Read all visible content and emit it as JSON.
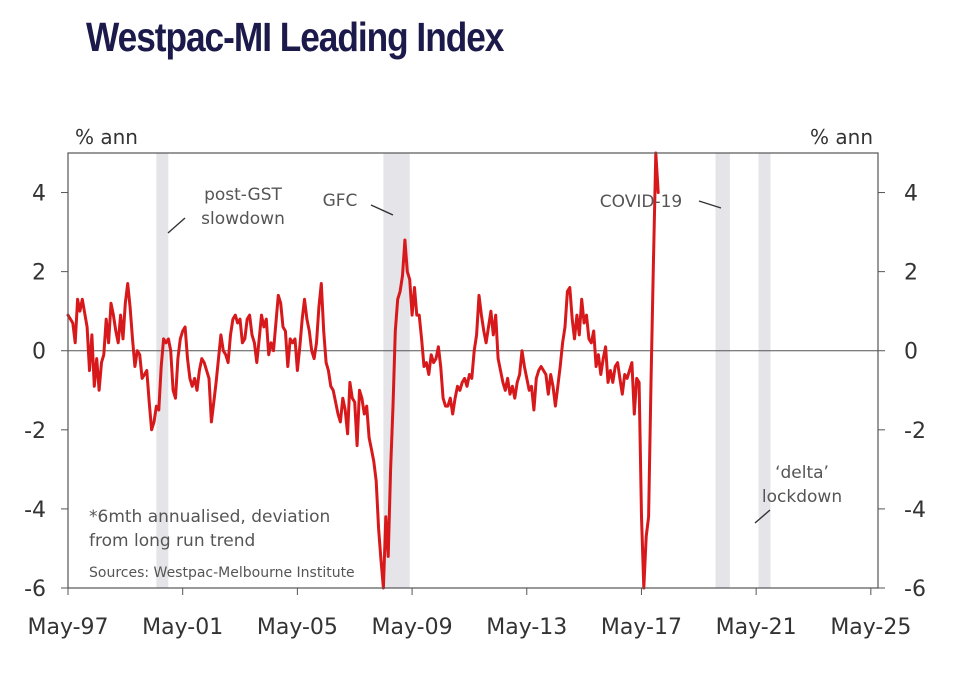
{
  "title": "Westpac-MI Leading Index",
  "chart_data": {
    "type": "line",
    "y_unit_left": "% ann",
    "y_unit_right": "% ann",
    "ylim": [
      -6,
      5
    ],
    "yticks": [
      4,
      2,
      0,
      -2,
      -4,
      -6
    ],
    "ytick_labels": [
      "4",
      "2",
      "0",
      "-2",
      "-4",
      "-6"
    ],
    "xlim": [
      "1997-05",
      "2025-08"
    ],
    "xticks": [
      "1997-05",
      "2001-05",
      "2005-05",
      "2009-05",
      "2013-05",
      "2017-05",
      "2021-05",
      "2025-05"
    ],
    "xtick_labels": [
      "May-97",
      "May-01",
      "May-05",
      "May-09",
      "May-13",
      "May-17",
      "May-21",
      "May-25"
    ],
    "grid": false,
    "zero_line": true,
    "line_color": "#d7191c",
    "shade_color": "#e4e4e9",
    "shaded_periods": [
      [
        "2000-06",
        "2000-11"
      ],
      [
        "2008-05",
        "2009-04"
      ],
      [
        "2019-12",
        "2020-06"
      ],
      [
        "2021-06",
        "2021-11"
      ]
    ],
    "annotations": [
      {
        "lines": [
          "post-GST",
          "slowdown"
        ]
      },
      {
        "lines": [
          "GFC"
        ]
      },
      {
        "lines": [
          "COVID-19"
        ]
      },
      {
        "lines": [
          "‘delta’",
          "lockdown"
        ]
      }
    ],
    "footnote": [
      "*6mth annualised, deviation",
      "from long run trend"
    ],
    "source": "Sources: Westpac-Melbourne Institute",
    "series": [
      {
        "values": [
          [
            "1997-05",
            0.9
          ],
          [
            "1997-07",
            0.7
          ],
          [
            "1997-08",
            0.2
          ],
          [
            "1997-09",
            1.3
          ],
          [
            "1997-10",
            1.0
          ],
          [
            "1997-11",
            1.3
          ],
          [
            "1998-01",
            0.6
          ],
          [
            "1998-02",
            -0.5
          ],
          [
            "1998-03",
            0.4
          ],
          [
            "1998-04",
            -0.9
          ],
          [
            "1998-05",
            -0.2
          ],
          [
            "1998-06",
            -1.0
          ],
          [
            "1998-07",
            -0.3
          ],
          [
            "1998-08",
            -0.1
          ],
          [
            "1998-09",
            0.8
          ],
          [
            "1998-10",
            0.2
          ],
          [
            "1998-11",
            1.2
          ],
          [
            "1998-12",
            0.9
          ],
          [
            "1999-01",
            0.5
          ],
          [
            "1999-02",
            0.2
          ],
          [
            "1999-03",
            0.9
          ],
          [
            "1999-04",
            0.3
          ],
          [
            "1999-05",
            1.2
          ],
          [
            "1999-06",
            1.7
          ],
          [
            "1999-07",
            1.1
          ],
          [
            "1999-08",
            0.3
          ],
          [
            "1999-09",
            -0.4
          ],
          [
            "1999-10",
            0.0
          ],
          [
            "1999-11",
            -0.1
          ],
          [
            "1999-12",
            -0.7
          ],
          [
            "2000-01",
            -0.6
          ],
          [
            "2000-02",
            -0.5
          ],
          [
            "2000-03",
            -1.3
          ],
          [
            "2000-04",
            -2.0
          ],
          [
            "2000-05",
            -1.8
          ],
          [
            "2000-06",
            -1.4
          ],
          [
            "2000-07",
            -1.5
          ],
          [
            "2000-08",
            -0.4
          ],
          [
            "2000-09",
            0.3
          ],
          [
            "2000-10",
            0.2
          ],
          [
            "2000-11",
            0.3
          ],
          [
            "2000-12",
            0.0
          ],
          [
            "2001-01",
            -1.0
          ],
          [
            "2001-02",
            -1.2
          ],
          [
            "2001-03",
            -0.2
          ],
          [
            "2001-04",
            0.3
          ],
          [
            "2001-05",
            0.5
          ],
          [
            "2001-06",
            0.6
          ],
          [
            "2001-07",
            -0.2
          ],
          [
            "2001-08",
            -0.7
          ],
          [
            "2001-09",
            -0.9
          ],
          [
            "2001-10",
            -0.7
          ],
          [
            "2001-11",
            -1.0
          ],
          [
            "2001-12",
            -0.5
          ],
          [
            "2002-01",
            -0.2
          ],
          [
            "2002-02",
            -0.3
          ],
          [
            "2002-03",
            -0.5
          ],
          [
            "2002-04",
            -0.7
          ],
          [
            "2002-05",
            -1.8
          ],
          [
            "2002-06",
            -1.3
          ],
          [
            "2002-07",
            -0.8
          ],
          [
            "2002-08",
            -0.2
          ],
          [
            "2002-09",
            0.4
          ],
          [
            "2002-10",
            0.0
          ],
          [
            "2002-11",
            -0.1
          ],
          [
            "2002-12",
            -0.3
          ],
          [
            "2003-01",
            0.4
          ],
          [
            "2003-02",
            0.8
          ],
          [
            "2003-03",
            0.9
          ],
          [
            "2003-04",
            0.7
          ],
          [
            "2003-05",
            0.8
          ],
          [
            "2003-06",
            0.2
          ],
          [
            "2003-07",
            0.3
          ],
          [
            "2003-08",
            0.8
          ],
          [
            "2003-09",
            0.9
          ],
          [
            "2003-10",
            0.4
          ],
          [
            "2003-11",
            0.2
          ],
          [
            "2003-12",
            -0.3
          ],
          [
            "2004-01",
            0.3
          ],
          [
            "2004-02",
            0.9
          ],
          [
            "2004-03",
            0.6
          ],
          [
            "2004-04",
            0.8
          ],
          [
            "2004-05",
            -0.1
          ],
          [
            "2004-06",
            0.2
          ],
          [
            "2004-07",
            0.0
          ],
          [
            "2004-08",
            0.7
          ],
          [
            "2004-09",
            1.4
          ],
          [
            "2004-10",
            1.2
          ],
          [
            "2004-11",
            0.6
          ],
          [
            "2004-12",
            0.5
          ],
          [
            "2005-01",
            -0.4
          ],
          [
            "2005-02",
            0.3
          ],
          [
            "2005-03",
            0.2
          ],
          [
            "2005-04",
            0.3
          ],
          [
            "2005-05",
            -0.5
          ],
          [
            "2005-06",
            0.1
          ],
          [
            "2005-07",
            0.8
          ],
          [
            "2005-08",
            1.3
          ],
          [
            "2005-09",
            0.8
          ],
          [
            "2005-10",
            0.5
          ],
          [
            "2005-11",
            0.0
          ],
          [
            "2005-12",
            -0.2
          ],
          [
            "2006-01",
            0.2
          ],
          [
            "2006-02",
            1.1
          ],
          [
            "2006-03",
            1.7
          ],
          [
            "2006-04",
            0.5
          ],
          [
            "2006-05",
            -0.3
          ],
          [
            "2006-06",
            -0.5
          ],
          [
            "2006-07",
            -0.9
          ],
          [
            "2006-08",
            -1.0
          ],
          [
            "2006-09",
            -1.3
          ],
          [
            "2006-10",
            -1.6
          ],
          [
            "2006-11",
            -1.8
          ],
          [
            "2006-12",
            -1.2
          ],
          [
            "2007-01",
            -1.5
          ],
          [
            "2007-02",
            -2.1
          ],
          [
            "2007-03",
            -0.8
          ],
          [
            "2007-04",
            -1.2
          ],
          [
            "2007-05",
            -1.3
          ],
          [
            "2007-06",
            -2.4
          ],
          [
            "2007-07",
            -1.0
          ],
          [
            "2007-08",
            -1.2
          ],
          [
            "2007-09",
            -1.6
          ],
          [
            "2007-10",
            -1.4
          ],
          [
            "2007-11",
            -2.2
          ],
          [
            "2007-12",
            -2.5
          ],
          [
            "2008-01",
            -2.8
          ],
          [
            "2008-02",
            -3.3
          ],
          [
            "2008-03",
            -4.5
          ],
          [
            "2008-04",
            -5.3
          ],
          [
            "2008-05",
            -6.0
          ],
          [
            "2008-06",
            -4.2
          ],
          [
            "2008-07",
            -5.2
          ],
          [
            "2008-08",
            -3.0
          ],
          [
            "2008-09",
            -1.4
          ],
          [
            "2008-10",
            0.5
          ],
          [
            "2008-11",
            1.3
          ],
          [
            "2008-12",
            1.5
          ],
          [
            "2009-01",
            1.9
          ],
          [
            "2009-02",
            2.8
          ],
          [
            "2009-03",
            2.0
          ],
          [
            "2009-04",
            1.8
          ],
          [
            "2009-05",
            0.9
          ],
          [
            "2009-06",
            1.6
          ],
          [
            "2009-07",
            0.9
          ],
          [
            "2009-08",
            0.9
          ],
          [
            "2009-09",
            0.3
          ],
          [
            "2009-10",
            -0.4
          ],
          [
            "2009-11",
            -0.3
          ],
          [
            "2009-12",
            -0.6
          ],
          [
            "2010-01",
            -0.1
          ],
          [
            "2010-02",
            -0.3
          ],
          [
            "2010-03",
            -0.2
          ],
          [
            "2010-04",
            0.1
          ],
          [
            "2010-05",
            -0.4
          ],
          [
            "2010-06",
            -1.2
          ],
          [
            "2010-07",
            -1.4
          ],
          [
            "2010-08",
            -1.4
          ],
          [
            "2010-09",
            -1.2
          ],
          [
            "2010-10",
            -1.6
          ],
          [
            "2010-11",
            -1.2
          ],
          [
            "2010-12",
            -0.9
          ],
          [
            "2011-01",
            -1.0
          ],
          [
            "2011-02",
            -0.8
          ],
          [
            "2011-03",
            -0.7
          ],
          [
            "2011-04",
            -0.9
          ],
          [
            "2011-05",
            -0.6
          ],
          [
            "2011-06",
            -0.7
          ],
          [
            "2011-07",
            0.0
          ],
          [
            "2011-08",
            0.4
          ],
          [
            "2011-09",
            1.4
          ],
          [
            "2011-10",
            0.9
          ],
          [
            "2011-11",
            0.5
          ],
          [
            "2011-12",
            0.2
          ],
          [
            "2012-01",
            0.6
          ],
          [
            "2012-02",
            1.0
          ],
          [
            "2012-03",
            0.4
          ],
          [
            "2012-04",
            0.9
          ],
          [
            "2012-05",
            -0.2
          ],
          [
            "2012-06",
            -0.5
          ],
          [
            "2012-07",
            -0.8
          ],
          [
            "2012-08",
            -1.0
          ],
          [
            "2012-09",
            -0.7
          ],
          [
            "2012-10",
            -1.1
          ],
          [
            "2012-11",
            -0.9
          ],
          [
            "2012-12",
            -1.2
          ],
          [
            "2013-01",
            -0.8
          ],
          [
            "2013-02",
            -0.6
          ],
          [
            "2013-03",
            0.0
          ],
          [
            "2013-04",
            -0.4
          ],
          [
            "2013-05",
            -0.7
          ],
          [
            "2013-06",
            -1.0
          ],
          [
            "2013-07",
            -0.9
          ],
          [
            "2013-08",
            -1.5
          ],
          [
            "2013-09",
            -0.7
          ],
          [
            "2013-10",
            -0.5
          ],
          [
            "2013-11",
            -0.4
          ],
          [
            "2013-12",
            -0.5
          ],
          [
            "2014-01",
            -0.6
          ],
          [
            "2014-02",
            -1.1
          ],
          [
            "2014-03",
            -0.6
          ],
          [
            "2014-04",
            -0.9
          ],
          [
            "2014-05",
            -1.4
          ],
          [
            "2014-06",
            -0.9
          ],
          [
            "2014-07",
            -0.4
          ],
          [
            "2014-08",
            0.2
          ],
          [
            "2014-09",
            0.6
          ],
          [
            "2014-10",
            1.5
          ],
          [
            "2014-11",
            1.6
          ],
          [
            "2014-12",
            0.8
          ],
          [
            "2015-01",
            0.3
          ],
          [
            "2015-02",
            0.9
          ],
          [
            "2015-03",
            0.4
          ],
          [
            "2015-04",
            1.3
          ],
          [
            "2015-05",
            0.7
          ],
          [
            "2015-06",
            0.9
          ],
          [
            "2015-07",
            0.3
          ],
          [
            "2015-08",
            0.2
          ],
          [
            "2015-09",
            0.5
          ],
          [
            "2015-10",
            -0.4
          ],
          [
            "2015-11",
            -0.1
          ],
          [
            "2015-12",
            -0.6
          ],
          [
            "2016-01",
            -0.2
          ],
          [
            "2016-02",
            0.1
          ],
          [
            "2016-03",
            -0.8
          ],
          [
            "2016-04",
            -0.5
          ],
          [
            "2016-05",
            -0.8
          ],
          [
            "2016-06",
            -0.4
          ],
          [
            "2016-07",
            -0.3
          ],
          [
            "2016-08",
            -0.7
          ],
          [
            "2016-09",
            -1.1
          ],
          [
            "2016-10",
            -0.6
          ],
          [
            "2016-11",
            -0.7
          ],
          [
            "2016-12",
            -0.5
          ],
          [
            "2017-01",
            -0.3
          ],
          [
            "2017-02",
            -1.6
          ],
          [
            "2017-03",
            -0.7
          ],
          [
            "2017-04",
            -0.8
          ],
          [
            "2017-05",
            -4.2
          ],
          [
            "2017-06",
            -6.0
          ],
          [
            "2017-07",
            -4.7
          ],
          [
            "2017-08",
            -4.2
          ],
          [
            "2017-09",
            -0.8
          ],
          [
            "2017-10",
            2.2
          ],
          [
            "2017-11",
            5.0
          ],
          [
            "2017-12",
            4.0
          ]
        ]
      }
    ]
  }
}
